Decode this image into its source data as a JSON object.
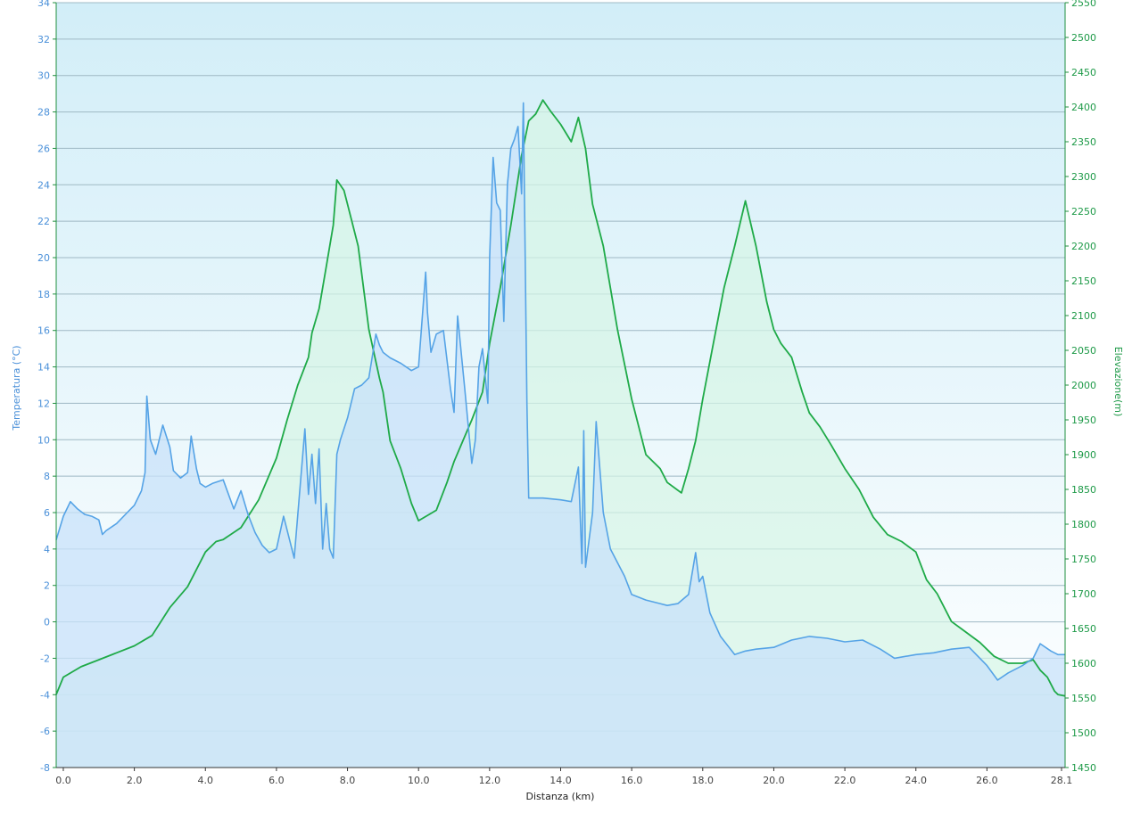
{
  "chart_data": {
    "type": "area",
    "xlabel": "Distanza  (km)",
    "ylabel_left": "Temperatura (°C)",
    "ylabel_right": "Elevazione(m)",
    "xlim": [
      -0.2,
      28.2
    ],
    "ylim_left": [
      -8,
      34
    ],
    "ylim_right": [
      1450,
      2550
    ],
    "grid": true,
    "x_ticks": [
      "0.0",
      "2.0",
      "4.0",
      "6.0",
      "8.0",
      "10.0",
      "12.0",
      "14.0",
      "16.0",
      "18.0",
      "20.0",
      "22.0",
      "24.0",
      "26.0",
      "28.1"
    ],
    "x_tick_values": [
      0,
      2,
      4,
      6,
      8,
      10,
      12,
      14,
      16,
      18,
      20,
      22,
      24,
      26,
      28.1
    ],
    "left_ticks": [
      "34",
      "32",
      "30",
      "28",
      "26",
      "24",
      "22",
      "20",
      "18",
      "16",
      "14",
      "12",
      "10",
      "8",
      "6",
      "4",
      "2",
      "0",
      "-2",
      "-4",
      "-6",
      "-8"
    ],
    "right_ticks": [
      "2550",
      "2500",
      "2450",
      "2400",
      "2350",
      "2300",
      "2250",
      "2200",
      "2150",
      "2100",
      "2050",
      "2000",
      "1950",
      "1900",
      "1850",
      "1800",
      "1750",
      "1700",
      "1650",
      "1600",
      "1550",
      "1500",
      "1450"
    ],
    "colors": {
      "temperature_line": "#55a3e6",
      "temperature_fill": "#c8e2fa",
      "elevation_line": "#1faa48",
      "elevation_fill": "#d6f5e6",
      "bg_top": "#d2eef8",
      "bg_bottom": "#ffffff",
      "grid": "#9fb9c4"
    },
    "series": [
      {
        "axis": "left",
        "x": [
          -0.2,
          0,
          0.2,
          0.4,
          0.6,
          0.8,
          1.0,
          1.1,
          1.2,
          1.5,
          1.8,
          2.0,
          2.2,
          2.3,
          2.35,
          2.45,
          2.6,
          2.8,
          3.0,
          3.1,
          3.3,
          3.5,
          3.6,
          3.75,
          3.85,
          4.0,
          4.2,
          4.5,
          4.8,
          5.0,
          5.2,
          5.4,
          5.6,
          5.8,
          6.0,
          6.2,
          6.5,
          6.8,
          6.9,
          7.0,
          7.1,
          7.2,
          7.3,
          7.4,
          7.5,
          7.6,
          7.7,
          7.8,
          8.0,
          8.2,
          8.4,
          8.6,
          8.8,
          8.9,
          9.0,
          9.2,
          9.5,
          9.8,
          10.0,
          10.2,
          10.25,
          10.35,
          10.5,
          10.7,
          10.9,
          11.0,
          11.1,
          11.3,
          11.5,
          11.6,
          11.7,
          11.8,
          11.95,
          12.0,
          12.1,
          12.2,
          12.3,
          12.4,
          12.5,
          12.6,
          12.7,
          12.8,
          12.9,
          12.95,
          13.05,
          13.1,
          13.2,
          13.5,
          14.0,
          14.3,
          14.5,
          14.6,
          14.65,
          14.7,
          14.9,
          15.0,
          15.2,
          15.4,
          15.8,
          16.0,
          16.4,
          16.8,
          17.0,
          17.3,
          17.6,
          17.8,
          17.85,
          17.9,
          18.0,
          18.2,
          18.5,
          18.9,
          19.2,
          19.5,
          20.0,
          20.5,
          21.0,
          21.5,
          22.0,
          22.5,
          23.0,
          23.4,
          24.0,
          24.5,
          25.0,
          25.5,
          26.0,
          26.3,
          26.6,
          27.0,
          27.3,
          27.5,
          27.8,
          28.0,
          28.2
        ],
        "values": [
          4.5,
          5.8,
          6.6,
          6.2,
          5.9,
          5.8,
          5.6,
          4.8,
          5.0,
          5.4,
          6.0,
          6.4,
          7.2,
          8.2,
          12.4,
          10.0,
          9.2,
          10.8,
          9.6,
          8.3,
          7.9,
          8.2,
          10.2,
          8.4,
          7.6,
          7.4,
          7.6,
          7.8,
          6.2,
          7.2,
          5.9,
          4.9,
          4.2,
          3.8,
          4.0,
          5.8,
          3.5,
          10.6,
          7.0,
          9.2,
          6.5,
          9.5,
          4.0,
          6.5,
          4.0,
          3.5,
          9.2,
          10.0,
          11.2,
          12.8,
          13.0,
          13.4,
          15.8,
          15.2,
          14.8,
          14.5,
          14.2,
          13.8,
          14.0,
          19.2,
          17.0,
          14.8,
          15.8,
          16.0,
          12.8,
          11.5,
          16.8,
          12.8,
          8.7,
          10.0,
          14.0,
          15.0,
          12.0,
          20.0,
          25.5,
          23.0,
          22.6,
          16.5,
          24.0,
          26.0,
          26.5,
          27.2,
          23.5,
          28.5,
          12.0,
          6.8,
          6.8,
          6.8,
          6.7,
          6.6,
          8.5,
          3.2,
          10.5,
          3.0,
          6.0,
          11.0,
          6.0,
          4.0,
          2.5,
          1.5,
          1.2,
          1.0,
          0.9,
          1.0,
          1.5,
          3.8,
          3.0,
          2.2,
          2.5,
          0.5,
          -0.8,
          -1.8,
          -1.6,
          -1.5,
          -1.4,
          -1.0,
          -0.8,
          -0.9,
          -1.1,
          -1.0,
          -1.5,
          -2.0,
          -1.8,
          -1.7,
          -1.5,
          -1.4,
          -2.4,
          -3.2,
          -2.8,
          -2.4,
          -2.0,
          -1.2,
          -1.6,
          -1.8,
          -1.8
        ],
        "name": ""
      },
      {
        "axis": "right",
        "x": [
          -0.2,
          0,
          0.5,
          1.0,
          1.5,
          2.0,
          2.5,
          3.0,
          3.5,
          4.0,
          4.3,
          4.5,
          5.0,
          5.5,
          6.0,
          6.3,
          6.6,
          6.9,
          7.0,
          7.2,
          7.4,
          7.6,
          7.7,
          7.9,
          8.0,
          8.3,
          8.6,
          8.9,
          9.0,
          9.2,
          9.5,
          9.8,
          10.0,
          10.5,
          10.8,
          11.0,
          11.5,
          11.8,
          12.0,
          12.3,
          12.6,
          12.9,
          13.1,
          13.3,
          13.5,
          13.7,
          14.0,
          14.3,
          14.5,
          14.7,
          14.9,
          15.2,
          15.6,
          16.0,
          16.4,
          16.8,
          17.0,
          17.4,
          17.6,
          17.8,
          18.0,
          18.3,
          18.6,
          18.9,
          19.2,
          19.5,
          19.8,
          20.0,
          20.2,
          20.5,
          20.8,
          21.0,
          21.3,
          21.6,
          22.0,
          22.4,
          22.8,
          23.2,
          23.6,
          24.0,
          24.3,
          24.6,
          25.0,
          25.4,
          25.8,
          26.2,
          26.6,
          27.0,
          27.3,
          27.5,
          27.7,
          27.9,
          28.0,
          28.2
        ],
        "values": [
          1555,
          1580,
          1595,
          1605,
          1615,
          1625,
          1640,
          1680,
          1710,
          1760,
          1775,
          1778,
          1795,
          1835,
          1895,
          1950,
          2000,
          2040,
          2075,
          2110,
          2170,
          2230,
          2295,
          2280,
          2260,
          2200,
          2080,
          2010,
          1990,
          1920,
          1880,
          1830,
          1805,
          1820,
          1860,
          1890,
          1950,
          1990,
          2060,
          2140,
          2230,
          2330,
          2380,
          2390,
          2410,
          2395,
          2375,
          2350,
          2385,
          2340,
          2260,
          2200,
          2080,
          1980,
          1900,
          1880,
          1860,
          1845,
          1880,
          1920,
          1980,
          2060,
          2140,
          2200,
          2265,
          2200,
          2120,
          2080,
          2060,
          2040,
          1990,
          1960,
          1940,
          1915,
          1880,
          1850,
          1810,
          1785,
          1775,
          1760,
          1720,
          1700,
          1660,
          1645,
          1630,
          1610,
          1600,
          1600,
          1605,
          1590,
          1580,
          1560,
          1555,
          1553
        ],
        "name": ""
      }
    ]
  }
}
